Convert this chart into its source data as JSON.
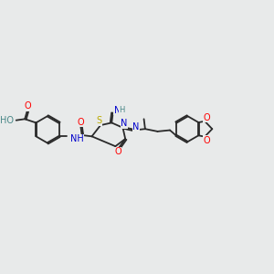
{
  "bg_color": "#e8eaea",
  "bond_color": "#2a2a2a",
  "atom_colors": {
    "O": "#ff0000",
    "N": "#0000cc",
    "S": "#bbaa00",
    "H": "#4a8888",
    "C": "#2a2a2a"
  },
  "figsize": [
    3.0,
    3.0
  ],
  "dpi": 100,
  "lw": 1.3,
  "fs": 7.0,
  "fs_small": 6.0
}
